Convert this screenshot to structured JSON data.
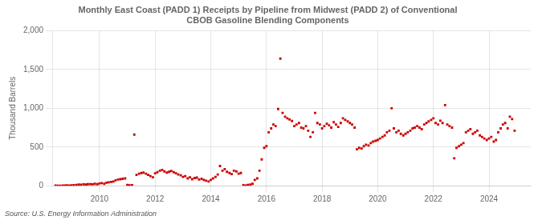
{
  "chart_data": {
    "type": "scatter",
    "title": "Monthly East Coast (PADD 1) Receipts by Pipeline from Midwest (PADD 2) of Conventional\nCBOB Gasoline Blending Components",
    "y_label": "Thousand Barrels",
    "annotations": [
      "Source: U.S. Energy Information Administration"
    ],
    "color": "#cc0000",
    "marker": "square",
    "grid": true,
    "ylim": [
      0,
      2000
    ],
    "yticks": [
      0,
      500,
      {
        "value": 1000,
        "label": "1,000"
      },
      {
        "value": 1500,
        "label": "1,500"
      },
      {
        "value": 2000,
        "label": "2,000"
      }
    ],
    "xlim": [
      2008.3,
      2025.5
    ],
    "xticks": [
      2010,
      2012,
      2014,
      2016,
      2018,
      2020,
      2022,
      2024
    ],
    "x": [
      2008.42,
      2008.5,
      2008.58,
      2008.67,
      2008.75,
      2008.83,
      2008.92,
      2009.0,
      2009.08,
      2009.17,
      2009.25,
      2009.33,
      2009.42,
      2009.5,
      2009.58,
      2009.67,
      2009.75,
      2009.83,
      2009.92,
      2010.0,
      2010.08,
      2010.17,
      2010.25,
      2010.33,
      2010.42,
      2010.5,
      2010.58,
      2010.67,
      2010.75,
      2010.83,
      2010.92,
      2011.0,
      2011.08,
      2011.17,
      2011.25,
      2011.33,
      2011.42,
      2011.5,
      2011.58,
      2011.67,
      2011.75,
      2011.83,
      2011.92,
      2012.0,
      2012.08,
      2012.17,
      2012.25,
      2012.33,
      2012.42,
      2012.5,
      2012.58,
      2012.67,
      2012.75,
      2012.83,
      2012.92,
      2013.0,
      2013.08,
      2013.17,
      2013.25,
      2013.33,
      2013.42,
      2013.5,
      2013.58,
      2013.67,
      2013.75,
      2013.83,
      2013.92,
      2014.0,
      2014.08,
      2014.17,
      2014.25,
      2014.33,
      2014.42,
      2014.5,
      2014.58,
      2014.67,
      2014.75,
      2014.83,
      2014.92,
      2015.0,
      2015.08,
      2015.17,
      2015.25,
      2015.33,
      2015.42,
      2015.5,
      2015.58,
      2015.67,
      2015.75,
      2015.83,
      2015.92,
      2016.0,
      2016.08,
      2016.17,
      2016.25,
      2016.33,
      2016.42,
      2016.5,
      2016.58,
      2016.67,
      2016.75,
      2016.83,
      2016.92,
      2017.0,
      2017.08,
      2017.17,
      2017.25,
      2017.33,
      2017.42,
      2017.5,
      2017.58,
      2017.67,
      2017.75,
      2017.83,
      2017.92,
      2018.0,
      2018.08,
      2018.17,
      2018.25,
      2018.33,
      2018.42,
      2018.5,
      2018.58,
      2018.67,
      2018.75,
      2018.83,
      2018.92,
      2019.0,
      2019.08,
      2019.17,
      2019.25,
      2019.33,
      2019.42,
      2019.5,
      2019.58,
      2019.67,
      2019.75,
      2019.83,
      2019.92,
      2020.0,
      2020.08,
      2020.17,
      2020.25,
      2020.33,
      2020.42,
      2020.5,
      2020.58,
      2020.67,
      2020.75,
      2020.83,
      2020.92,
      2021.0,
      2021.08,
      2021.17,
      2021.25,
      2021.33,
      2021.42,
      2021.5,
      2021.58,
      2021.67,
      2021.75,
      2021.83,
      2021.92,
      2022.0,
      2022.08,
      2022.17,
      2022.25,
      2022.33,
      2022.42,
      2022.5,
      2022.58,
      2022.67,
      2022.75,
      2022.83,
      2022.92,
      2023.0,
      2023.08,
      2023.17,
      2023.25,
      2023.33,
      2023.42,
      2023.5,
      2023.58,
      2023.67,
      2023.75,
      2023.83,
      2023.92,
      2024.0,
      2024.08,
      2024.17,
      2024.25,
      2024.33,
      2024.42,
      2024.5,
      2024.58,
      2024.67,
      2024.75,
      2024.83,
      2024.92
    ],
    "values": [
      2,
      0,
      1,
      3,
      2,
      5,
      3,
      5,
      8,
      10,
      15,
      12,
      18,
      16,
      20,
      22,
      18,
      25,
      20,
      30,
      35,
      25,
      40,
      45,
      50,
      55,
      70,
      80,
      85,
      90,
      95,
      10,
      5,
      8,
      660,
      140,
      155,
      165,
      170,
      155,
      140,
      125,
      110,
      160,
      175,
      195,
      205,
      185,
      170,
      180,
      190,
      175,
      160,
      145,
      135,
      115,
      125,
      95,
      110,
      85,
      100,
      105,
      80,
      90,
      75,
      65,
      55,
      75,
      95,
      115,
      145,
      255,
      195,
      215,
      180,
      165,
      150,
      195,
      185,
      155,
      165,
      8,
      3,
      10,
      15,
      25,
      75,
      95,
      195,
      340,
      490,
      510,
      690,
      740,
      790,
      770,
      990,
      1640,
      940,
      890,
      870,
      855,
      835,
      770,
      790,
      810,
      750,
      740,
      770,
      710,
      630,
      690,
      940,
      810,
      790,
      740,
      770,
      800,
      780,
      750,
      820,
      790,
      760,
      810,
      870,
      850,
      830,
      810,
      790,
      750,
      470,
      490,
      480,
      510,
      530,
      520,
      550,
      570,
      580,
      590,
      610,
      630,
      650,
      690,
      710,
      1000,
      740,
      690,
      710,
      670,
      650,
      670,
      690,
      710,
      740,
      750,
      770,
      750,
      730,
      790,
      810,
      830,
      850,
      870,
      810,
      790,
      840,
      810,
      1040,
      790,
      770,
      750,
      355,
      490,
      510,
      530,
      550,
      690,
      710,
      730,
      670,
      690,
      710,
      650,
      630,
      610,
      590,
      610,
      630,
      570,
      590,
      690,
      740,
      790,
      810,
      740,
      890,
      860,
      710
    ]
  }
}
